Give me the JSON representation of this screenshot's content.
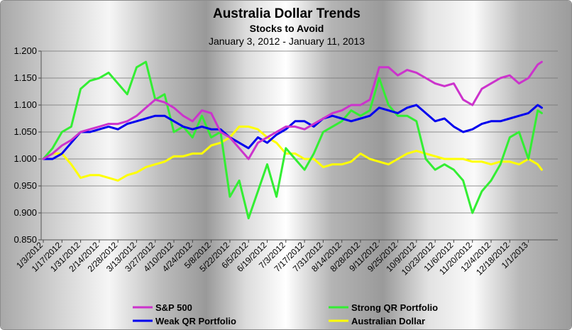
{
  "chart_data": {
    "type": "line",
    "title": "Australia Dollar Trends",
    "subtitle": "Stocks to Avoid",
    "date_range": "January 3, 2012 - January 11, 2013",
    "xlabel": "",
    "ylabel": "",
    "ylim": [
      0.85,
      1.2
    ],
    "y_ticks": [
      "0.850",
      "0.900",
      "0.950",
      "1.000",
      "1.050",
      "1.100",
      "1.150",
      "1.200"
    ],
    "x_ticks": [
      "1/3/2012",
      "1/17/2012",
      "1/31/2012",
      "2/14/2012",
      "2/28/2012",
      "3/13/2012",
      "3/27/2012",
      "4/10/2012",
      "4/24/2012",
      "5/8/2012",
      "5/22/2012",
      "6/5/2012",
      "6/19/2012",
      "7/3/2012",
      "7/17/2012",
      "7/31/2012",
      "8/14/2012",
      "8/28/2012",
      "9/11/2012",
      "9/25/2012",
      "10/9/2012",
      "10/23/2012",
      "11/6/2012",
      "11/20/2012",
      "12/4/2012",
      "12/18/2012",
      "1/1/2013"
    ],
    "x": [
      "1/3/2012",
      "1/10/2012",
      "1/17/2012",
      "1/24/2012",
      "1/31/2012",
      "2/7/2012",
      "2/14/2012",
      "2/21/2012",
      "2/28/2012",
      "3/6/2012",
      "3/13/2012",
      "3/20/2012",
      "3/27/2012",
      "4/3/2012",
      "4/10/2012",
      "4/17/2012",
      "4/24/2012",
      "5/1/2012",
      "5/8/2012",
      "5/15/2012",
      "5/22/2012",
      "5/29/2012",
      "6/5/2012",
      "6/12/2012",
      "6/19/2012",
      "6/26/2012",
      "7/3/2012",
      "7/10/2012",
      "7/17/2012",
      "7/24/2012",
      "7/31/2012",
      "8/7/2012",
      "8/14/2012",
      "8/21/2012",
      "8/28/2012",
      "9/4/2012",
      "9/11/2012",
      "9/18/2012",
      "9/25/2012",
      "10/2/2012",
      "10/9/2012",
      "10/16/2012",
      "10/23/2012",
      "10/30/2012",
      "11/6/2012",
      "11/13/2012",
      "11/20/2012",
      "11/27/2012",
      "12/4/2012",
      "12/11/2012",
      "12/18/2012",
      "12/25/2012",
      "1/1/2013",
      "1/8/2013",
      "1/11/2013"
    ],
    "grid": true,
    "legend_position": "bottom",
    "series": [
      {
        "name": "S&P 500",
        "color": "#cc33cc",
        "values": [
          1.0,
          1.01,
          1.025,
          1.035,
          1.05,
          1.055,
          1.06,
          1.065,
          1.065,
          1.07,
          1.08,
          1.095,
          1.11,
          1.105,
          1.095,
          1.08,
          1.07,
          1.09,
          1.085,
          1.05,
          1.04,
          1.02,
          1.0,
          1.03,
          1.04,
          1.05,
          1.06,
          1.06,
          1.055,
          1.065,
          1.075,
          1.085,
          1.09,
          1.1,
          1.1,
          1.11,
          1.17,
          1.17,
          1.155,
          1.165,
          1.16,
          1.15,
          1.14,
          1.135,
          1.14,
          1.11,
          1.1,
          1.13,
          1.14,
          1.15,
          1.155,
          1.14,
          1.15,
          1.175,
          1.18
        ]
      },
      {
        "name": "Strong QR Portfolio",
        "color": "#33ee33",
        "values": [
          1.0,
          1.02,
          1.05,
          1.06,
          1.13,
          1.145,
          1.15,
          1.16,
          1.14,
          1.12,
          1.17,
          1.18,
          1.11,
          1.12,
          1.05,
          1.06,
          1.04,
          1.08,
          1.04,
          1.05,
          0.93,
          0.96,
          0.89,
          0.94,
          0.99,
          0.93,
          1.02,
          1.0,
          0.98,
          1.01,
          1.05,
          1.06,
          1.07,
          1.09,
          1.08,
          1.09,
          1.15,
          1.1,
          1.08,
          1.08,
          1.07,
          1.0,
          0.98,
          0.99,
          0.98,
          0.96,
          0.9,
          0.94,
          0.96,
          0.99,
          1.04,
          1.05,
          1.0,
          1.09,
          1.085
        ]
      },
      {
        "name": "Weak QR Portfolio",
        "color": "#0000ee",
        "values": [
          1.0,
          1.0,
          1.01,
          1.03,
          1.05,
          1.05,
          1.055,
          1.06,
          1.055,
          1.065,
          1.07,
          1.075,
          1.08,
          1.08,
          1.07,
          1.06,
          1.055,
          1.06,
          1.055,
          1.055,
          1.04,
          1.03,
          1.02,
          1.04,
          1.03,
          1.045,
          1.055,
          1.07,
          1.07,
          1.06,
          1.075,
          1.08,
          1.075,
          1.07,
          1.075,
          1.08,
          1.095,
          1.09,
          1.085,
          1.095,
          1.1,
          1.085,
          1.07,
          1.075,
          1.06,
          1.05,
          1.055,
          1.065,
          1.07,
          1.07,
          1.075,
          1.08,
          1.085,
          1.1,
          1.095
        ]
      },
      {
        "name": "Australian Dollar",
        "color": "#ffff00",
        "values": [
          1.0,
          1.01,
          1.01,
          0.99,
          0.965,
          0.97,
          0.97,
          0.965,
          0.96,
          0.97,
          0.975,
          0.985,
          0.99,
          0.995,
          1.005,
          1.005,
          1.01,
          1.01,
          1.025,
          1.03,
          1.04,
          1.06,
          1.06,
          1.055,
          1.04,
          1.03,
          1.01,
          1.01,
          1.0,
          1.0,
          0.985,
          0.99,
          0.99,
          0.995,
          1.01,
          1.0,
          0.995,
          0.99,
          1.0,
          1.01,
          1.015,
          1.01,
          1.005,
          1.0,
          1.0,
          1.0,
          0.995,
          0.995,
          0.99,
          0.995,
          0.995,
          0.99,
          1.0,
          0.99,
          0.98
        ]
      }
    ]
  }
}
